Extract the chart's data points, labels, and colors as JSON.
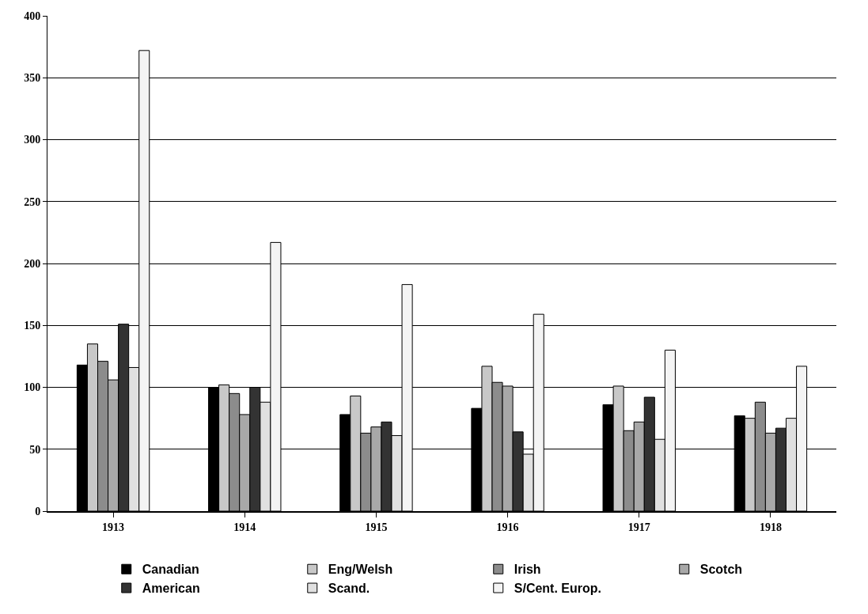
{
  "chart_data": {
    "type": "bar",
    "categories": [
      "1913",
      "1914",
      "1915",
      "1916",
      "1917",
      "1918"
    ],
    "series": [
      {
        "name": "Canadian",
        "color": "#000000",
        "values": [
          118,
          100,
          78,
          83,
          86,
          77
        ]
      },
      {
        "name": "Eng/Welsh",
        "color": "#c8c8c8",
        "values": [
          135,
          102,
          93,
          117,
          101,
          75
        ]
      },
      {
        "name": "Irish",
        "color": "#8c8c8c",
        "values": [
          121,
          95,
          63,
          104,
          65,
          88
        ]
      },
      {
        "name": "Scotch",
        "color": "#a8a8a8",
        "values": [
          106,
          78,
          68,
          101,
          72,
          63
        ]
      },
      {
        "name": "American",
        "color": "#333333",
        "values": [
          151,
          100,
          72,
          64,
          92,
          67
        ]
      },
      {
        "name": "Scand.",
        "color": "#e0e0e0",
        "values": [
          116,
          88,
          61,
          46,
          58,
          75
        ]
      },
      {
        "name": "S/Cent. Europ.",
        "color": "#f4f4f4",
        "values": [
          372,
          217,
          183,
          159,
          130,
          117
        ]
      }
    ],
    "ylim": [
      0,
      400
    ],
    "yticks": [
      0,
      50,
      100,
      150,
      200,
      250,
      300,
      350,
      400
    ],
    "grid": "y",
    "legend": "bottom"
  }
}
